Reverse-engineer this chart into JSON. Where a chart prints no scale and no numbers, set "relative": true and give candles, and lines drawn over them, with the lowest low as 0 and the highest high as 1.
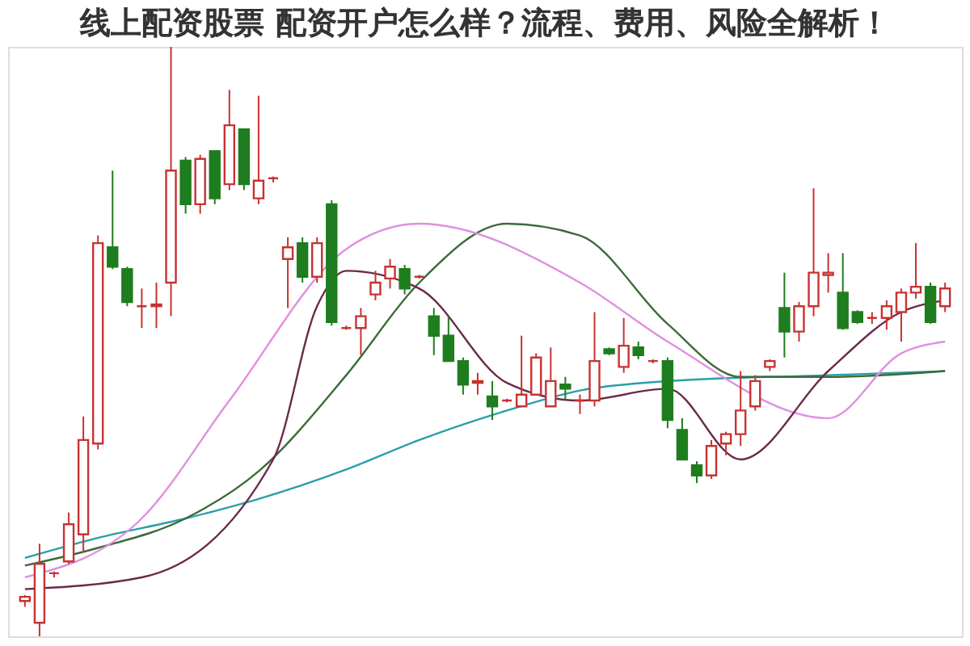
{
  "chart_data": {
    "type": "candlestick",
    "title": "线上配资股票 配资开户怎么样？流程、费用、风险全解析！",
    "relative": true,
    "categories": [
      null,
      null,
      null,
      null,
      null,
      null,
      null,
      null,
      null,
      null,
      null,
      null,
      null,
      null,
      null,
      null,
      null,
      null,
      null,
      null,
      null,
      null,
      null,
      null,
      null,
      null,
      null,
      null,
      null,
      null,
      null,
      null,
      null,
      null,
      null,
      null,
      null,
      null,
      null,
      null,
      null,
      null,
      null,
      null,
      null,
      null,
      null,
      null,
      null,
      null,
      null,
      null,
      null,
      null,
      null,
      null,
      null,
      null,
      null,
      null,
      null,
      null,
      null,
      null
    ],
    "ohlc": [
      [
        0.06,
        0.07,
        0.05,
        0.067
      ],
      [
        0.023,
        0.157,
        0,
        0.123
      ],
      [
        0.107,
        0.11,
        0.1,
        0.107
      ],
      [
        0.127,
        0.21,
        0.123,
        0.19
      ],
      [
        0.173,
        0.373,
        0.143,
        0.333
      ],
      [
        0.327,
        0.68,
        0.317,
        0.667
      ],
      [
        0.66,
        0.79,
        0.623,
        0.627
      ],
      [
        0.623,
        0.627,
        0.56,
        0.567
      ],
      [
        0.56,
        0.59,
        0.523,
        0.56
      ],
      [
        0.56,
        0.6,
        0.523,
        0.563
      ],
      [
        0.6,
        1.0,
        0.543,
        0.79
      ],
      [
        0.807,
        0.813,
        0.717,
        0.733
      ],
      [
        0.733,
        0.817,
        0.717,
        0.81
      ],
      [
        0.823,
        0.823,
        0.733,
        0.743
      ],
      [
        0.767,
        0.927,
        0.757,
        0.867
      ],
      [
        0.86,
        0.86,
        0.757,
        0.767
      ],
      [
        0.743,
        0.917,
        0.733,
        0.773
      ],
      [
        0.777,
        0.78,
        0.77,
        0.777
      ],
      [
        0.64,
        0.677,
        0.557,
        0.66
      ],
      [
        0.667,
        0.677,
        0.6,
        0.61
      ],
      [
        0.61,
        0.677,
        0.6,
        0.667
      ],
      [
        0.733,
        0.74,
        0.527,
        0.533
      ],
      [
        0.523,
        0.527,
        0.52,
        0.523
      ],
      [
        0.523,
        0.557,
        0.477,
        0.543
      ],
      [
        0.58,
        0.62,
        0.57,
        0.6
      ],
      [
        0.607,
        0.64,
        0.59,
        0.627
      ],
      [
        0.623,
        0.63,
        0.58,
        0.59
      ],
      [
        0.61,
        0.613,
        0.607,
        0.61
      ],
      [
        0.543,
        0.557,
        0.477,
        0.51
      ],
      [
        0.51,
        0.543,
        0.467,
        0.467
      ],
      [
        0.467,
        0.473,
        0.41,
        0.427
      ],
      [
        0.43,
        0.447,
        0.41,
        0.433
      ],
      [
        0.407,
        0.433,
        0.367,
        0.39
      ],
      [
        0.4,
        0.403,
        0.397,
        0.4
      ],
      [
        0.39,
        0.51,
        0.39,
        0.41
      ],
      [
        0.41,
        0.48,
        0.41,
        0.473
      ],
      [
        0.39,
        0.49,
        0.39,
        0.433
      ],
      [
        0.427,
        0.44,
        0.4,
        0.42
      ],
      [
        0.4,
        0.41,
        0.377,
        0.4
      ],
      [
        0.4,
        0.55,
        0.39,
        0.467
      ],
      [
        0.487,
        0.49,
        0.477,
        0.48
      ],
      [
        0.457,
        0.54,
        0.447,
        0.493
      ],
      [
        0.49,
        0.5,
        0.47,
        0.477
      ],
      [
        0.467,
        0.47,
        0.463,
        0.467
      ],
      [
        0.467,
        0.473,
        0.353,
        0.367
      ],
      [
        0.35,
        0.37,
        0.3,
        0.3
      ],
      [
        0.29,
        0.297,
        0.26,
        0.273
      ],
      [
        0.273,
        0.333,
        0.267,
        0.323
      ],
      [
        0.327,
        0.347,
        0.307,
        0.343
      ],
      [
        0.343,
        0.45,
        0.323,
        0.383
      ],
      [
        0.39,
        0.443,
        0.383,
        0.433
      ],
      [
        0.457,
        0.47,
        0.45,
        0.467
      ],
      [
        0.557,
        0.617,
        0.473,
        0.517
      ],
      [
        0.517,
        0.567,
        0.5,
        0.56
      ],
      [
        0.56,
        0.76,
        0.543,
        0.617
      ],
      [
        0.613,
        0.65,
        0.583,
        0.617
      ],
      [
        0.583,
        0.65,
        0.52,
        0.523
      ],
      [
        0.55,
        0.553,
        0.53,
        0.533
      ],
      [
        0.54,
        0.55,
        0.53,
        0.54
      ],
      [
        0.54,
        0.57,
        0.52,
        0.56
      ],
      [
        0.55,
        0.59,
        0.5,
        0.583
      ],
      [
        0.583,
        0.667,
        0.573,
        0.593
      ],
      [
        0.593,
        0.6,
        0.53,
        0.533
      ],
      [
        0.56,
        0.6,
        0.55,
        0.59
      ]
    ],
    "colors": [
      "#c83232",
      "#c83232",
      "#c83232",
      "#c83232",
      "#c83232",
      "#c83232",
      "#1e7d1e",
      "#1e7d1e",
      "#c83232",
      "#c83232",
      "#c83232",
      "#1e7d1e",
      "#c83232",
      "#1e7d1e",
      "#c83232",
      "#1e7d1e",
      "#c83232",
      "#c83232",
      "#c83232",
      "#1e7d1e",
      "#c83232",
      "#1e7d1e",
      "#c83232",
      "#c83232",
      "#c83232",
      "#c83232",
      "#1e7d1e",
      "#c83232",
      "#1e7d1e",
      "#1e7d1e",
      "#1e7d1e",
      "#c83232",
      "#1e7d1e",
      "#c83232",
      "#c83232",
      "#c83232",
      "#c83232",
      "#1e7d1e",
      "#c83232",
      "#c83232",
      "#1e7d1e",
      "#c83232",
      "#1e7d1e",
      "#c83232",
      "#1e7d1e",
      "#1e7d1e",
      "#1e7d1e",
      "#c83232",
      "#c83232",
      "#c83232",
      "#c83232",
      "#c83232",
      "#1e7d1e",
      "#c83232",
      "#c83232",
      "#c83232",
      "#1e7d1e",
      "#1e7d1e",
      "#c83232",
      "#c83232",
      "#c83232",
      "#c83232",
      "#1e7d1e",
      "#c83232"
    ],
    "series": [
      {
        "type": "line",
        "color": "#2a9fa8",
        "values": [
          0.133,
          null,
          null,
          null,
          null,
          0.167,
          null,
          null,
          null,
          null,
          null,
          0.2,
          null,
          null,
          null,
          null,
          0.233,
          null,
          null,
          null,
          null,
          null,
          0.283,
          null,
          null,
          null,
          null,
          0.333,
          null,
          null,
          null,
          null,
          null,
          0.383,
          null,
          null,
          null,
          null,
          0.417,
          null,
          null,
          null,
          null,
          null,
          0.433,
          null,
          null,
          null,
          null,
          null,
          null,
          null,
          null,
          null,
          null,
          0.443,
          null,
          null,
          null,
          null,
          null,
          null,
          null,
          0.45
        ]
      },
      {
        "type": "line",
        "color": "#3d6b3a",
        "values": [
          0.12,
          null,
          null,
          null,
          null,
          0.15,
          null,
          null,
          null,
          null,
          null,
          0.2,
          null,
          null,
          null,
          null,
          0.28,
          null,
          null,
          null,
          null,
          null,
          0.443,
          null,
          null,
          null,
          null,
          0.6,
          null,
          null,
          null,
          null,
          null,
          0.7,
          null,
          null,
          null,
          null,
          0.68,
          null,
          null,
          null,
          null,
          null,
          0.53,
          null,
          null,
          null,
          null,
          0.44,
          null,
          null,
          null,
          null,
          null,
          0.44,
          null,
          null,
          null,
          null,
          null,
          null,
          null,
          0.45
        ]
      },
      {
        "type": "line",
        "color": "#e08fe0",
        "values": [
          0.1,
          null,
          null,
          null,
          null,
          null,
          null,
          null,
          0.2,
          null,
          null,
          null,
          null,
          null,
          0.4,
          null,
          null,
          null,
          null,
          null,
          null,
          null,
          0.657,
          null,
          null,
          null,
          null,
          0.7,
          null,
          null,
          null,
          null,
          null,
          null,
          null,
          null,
          null,
          null,
          0.6,
          null,
          null,
          null,
          null,
          null,
          0.5,
          null,
          null,
          null,
          null,
          null,
          null,
          null,
          null,
          null,
          null,
          0.37,
          null,
          null,
          null,
          null,
          0.48,
          null,
          null,
          0.5
        ]
      },
      {
        "type": "line",
        "color": "#6b2a4a",
        "values": [
          0.08,
          null,
          null,
          null,
          null,
          null,
          null,
          null,
          0.1,
          null,
          null,
          null,
          null,
          null,
          null,
          null,
          null,
          0.3,
          null,
          null,
          0.56,
          null,
          0.62,
          null,
          null,
          null,
          null,
          0.59,
          null,
          null,
          null,
          null,
          null,
          0.43,
          null,
          null,
          null,
          null,
          0.4,
          null,
          null,
          null,
          null,
          null,
          0.42,
          null,
          null,
          null,
          null,
          0.3,
          null,
          null,
          null,
          null,
          null,
          0.45,
          null,
          null,
          null,
          null,
          0.55,
          null,
          null,
          0.57
        ]
      }
    ]
  }
}
